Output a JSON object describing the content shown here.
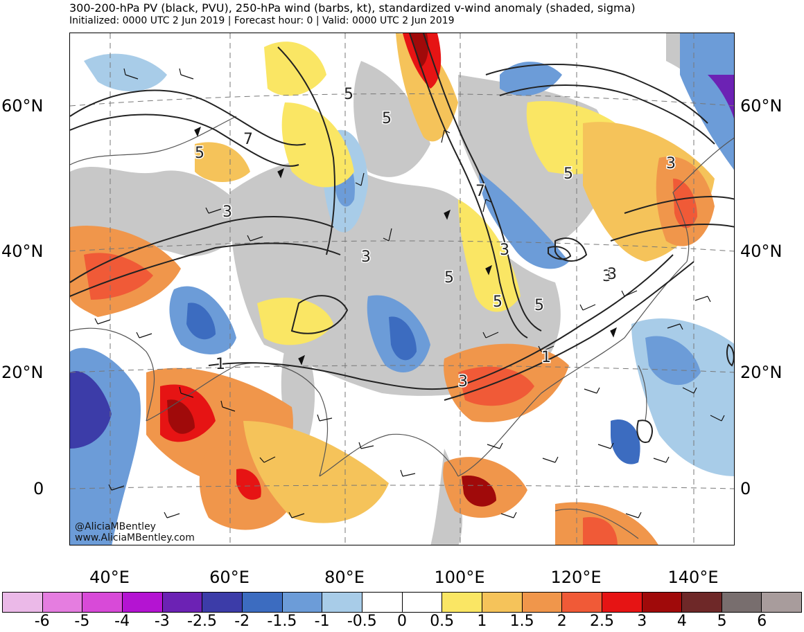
{
  "header": {
    "title": "300-200-hPa PV (black, PVU), 250-hPa wind (barbs, kt), standardized v-wind anomaly (shaded, sigma)",
    "subtitle": "Initialized: 0000 UTC 2 Jun 2019 | Forecast hour: 0 | Valid: 0000 UTC 2 Jun 2019"
  },
  "map": {
    "lat_labels": [
      "60°N",
      "40°N",
      "20°N",
      "0"
    ],
    "lon_labels": [
      "40°E",
      "60°E",
      "80°E",
      "100°E",
      "120°E",
      "140°E"
    ],
    "contour_labels": [
      "5",
      "7",
      "3",
      "5",
      "5",
      "3",
      "7",
      "3",
      "5",
      "5",
      "3",
      "5",
      "3",
      "1",
      "3",
      "1",
      "3",
      "5"
    ],
    "credit_handle": "@AliciaMBentley",
    "credit_url": "www.AliciaMBentley.com"
  },
  "colorbar": {
    "labels": [
      "-6",
      "-5",
      "-4",
      "-3",
      "-2.5",
      "-2",
      "-1.5",
      "-1",
      "-0.5",
      "0",
      "0.5",
      "1",
      "1.5",
      "2",
      "2.5",
      "3",
      "4",
      "5",
      "6"
    ],
    "colors": [
      "#ebb9e8",
      "#e57de0",
      "#d84ad8",
      "#b414d2",
      "#6c22b4",
      "#3c3ca8",
      "#3c6cc0",
      "#6c9cd8",
      "#a8cce8",
      "#ffffff",
      "#ffffff",
      "#fae664",
      "#f5c35a",
      "#f0964b",
      "#f05a37",
      "#e61414",
      "#a00a0a",
      "#6e2828",
      "#786e6e",
      "#a89c9c"
    ]
  }
}
